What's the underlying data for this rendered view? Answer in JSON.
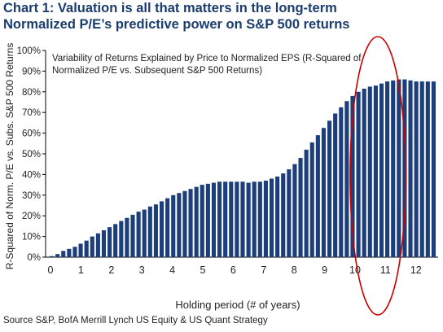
{
  "title_line1": "Chart 1: Valuation is all that matters in the long-term",
  "title_line2": "Normalized P/E’s predictive power on S&P 500 returns",
  "source": "Source S&P, BofA Merrill Lynch US Equity & US Quant Strategy",
  "colors": {
    "bar": "#1c3f7c",
    "title": "#1a3c6e",
    "highlight": "#cc0000"
  },
  "chart_data": {
    "type": "bar",
    "inner_title": [
      "Variability of Returns Explained by Price to Normalized EPS (R-Squared of",
      "Normalized P/E vs. Subsequent S&P 500 Returns)"
    ],
    "xlabel": "Holding period (# of years)",
    "ylabel": "R-Squared of Norm. P/E vs. Subs. S&P 500 Returns",
    "xlim": [
      0,
      12.5
    ],
    "ylim": [
      0,
      100
    ],
    "x_ticks": [
      0,
      1,
      2,
      3,
      4,
      5,
      6,
      7,
      8,
      9,
      10,
      11,
      12
    ],
    "y_ticks": [
      "0%",
      "10%",
      "20%",
      "30%",
      "40%",
      "50%",
      "60%",
      "70%",
      "80%",
      "90%",
      "100%"
    ],
    "grid": false,
    "highlight": {
      "shape": "ellipse",
      "x_range": [
        10,
        11.5
      ]
    },
    "series": [
      {
        "values": [
          0.5,
          1.5,
          3,
          4,
          5,
          6.5,
          8,
          10,
          11.5,
          13,
          14.5,
          16,
          17.5,
          19,
          20.5,
          22,
          23,
          24.5,
          25.5,
          27,
          28.5,
          30,
          31,
          32,
          33,
          34,
          35,
          35.5,
          36,
          36.5,
          36.5,
          36.5,
          36.5,
          36.5,
          36,
          36.5,
          36.5,
          37,
          38,
          39,
          40.5,
          42.5,
          45,
          48,
          52,
          55.5,
          59,
          62.5,
          66,
          69.5,
          72.5,
          75.5,
          78,
          80,
          81.5,
          82.5,
          83,
          84,
          85,
          85.5,
          86,
          86,
          85.5,
          85,
          85,
          85,
          85
        ]
      }
    ]
  }
}
